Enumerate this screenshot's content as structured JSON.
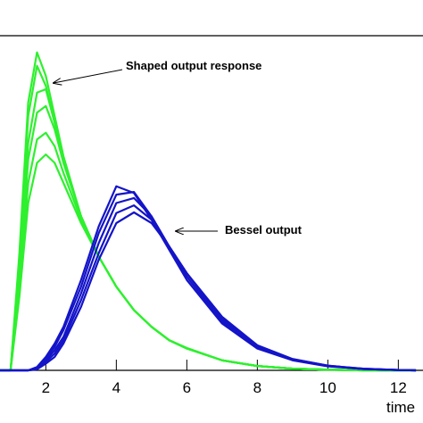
{
  "chart_data": {
    "type": "line",
    "x_label": "time",
    "annotations": [
      "Shaped output response",
      "Bessel output"
    ],
    "x": [
      0.5,
      1.0,
      1.25,
      1.5,
      1.75,
      2.0,
      2.25,
      2.5,
      3,
      3.5,
      4,
      4.5,
      5,
      5.5,
      6,
      7,
      8,
      9,
      10,
      11,
      12,
      12.5
    ],
    "series": [
      {
        "color": "#2ef02e",
        "values": [
          0,
          0,
          0.35,
          0.8,
          0.95,
          0.88,
          0.76,
          0.64,
          0.46,
          0.34,
          0.25,
          0.18,
          0.13,
          0.09,
          0.065,
          0.03,
          0.013,
          0.005,
          0.002,
          0,
          0,
          0
        ]
      },
      {
        "color": "#2ef02e",
        "values": [
          0,
          0,
          0.33,
          0.76,
          0.91,
          0.85,
          0.74,
          0.63,
          0.46,
          0.34,
          0.25,
          0.18,
          0.13,
          0.09,
          0.065,
          0.03,
          0.013,
          0.005,
          0.002,
          0,
          0,
          0
        ]
      },
      {
        "color": "#2ef02e",
        "values": [
          0,
          0,
          0.3,
          0.68,
          0.83,
          0.84,
          0.74,
          0.63,
          0.46,
          0.34,
          0.25,
          0.18,
          0.13,
          0.09,
          0.066,
          0.03,
          0.013,
          0.005,
          0.002,
          0,
          0,
          0
        ]
      },
      {
        "color": "#2ef02e",
        "values": [
          0,
          0,
          0.28,
          0.63,
          0.77,
          0.79,
          0.72,
          0.62,
          0.46,
          0.34,
          0.25,
          0.18,
          0.13,
          0.09,
          0.066,
          0.03,
          0.013,
          0.005,
          0.002,
          0,
          0,
          0
        ]
      },
      {
        "color": "#2ef02e",
        "values": [
          0,
          0,
          0.25,
          0.56,
          0.69,
          0.71,
          0.67,
          0.59,
          0.45,
          0.34,
          0.25,
          0.18,
          0.13,
          0.09,
          0.066,
          0.03,
          0.013,
          0.005,
          0.002,
          0,
          0,
          0
        ]
      },
      {
        "color": "#2ef02e",
        "values": [
          0,
          0,
          0.22,
          0.5,
          0.62,
          0.645,
          0.62,
          0.56,
          0.44,
          0.34,
          0.25,
          0.18,
          0.13,
          0.09,
          0.067,
          0.03,
          0.013,
          0.005,
          0.002,
          0,
          0,
          0
        ]
      },
      {
        "color": "#1414c8",
        "values": [
          0,
          0,
          0,
          0,
          0.01,
          0.04,
          0.08,
          0.13,
          0.27,
          0.43,
          0.55,
          0.53,
          0.45,
          0.36,
          0.27,
          0.14,
          0.065,
          0.03,
          0.012,
          0.004,
          0.001,
          0
        ]
      },
      {
        "color": "#1414c8",
        "values": [
          0,
          0,
          0,
          0,
          0.008,
          0.035,
          0.07,
          0.12,
          0.25,
          0.41,
          0.525,
          0.533,
          0.46,
          0.37,
          0.28,
          0.145,
          0.068,
          0.031,
          0.013,
          0.004,
          0.001,
          0
        ]
      },
      {
        "color": "#1414c8",
        "values": [
          0,
          0,
          0,
          0,
          0.006,
          0.03,
          0.06,
          0.1,
          0.23,
          0.38,
          0.5,
          0.515,
          0.46,
          0.37,
          0.29,
          0.15,
          0.07,
          0.032,
          0.013,
          0.004,
          0.001,
          0
        ]
      },
      {
        "color": "#1414c8",
        "values": [
          0,
          0,
          0,
          0,
          0.004,
          0.025,
          0.05,
          0.09,
          0.21,
          0.35,
          0.47,
          0.493,
          0.45,
          0.37,
          0.29,
          0.155,
          0.072,
          0.033,
          0.014,
          0.005,
          0.001,
          0
        ]
      },
      {
        "color": "#1414c8",
        "values": [
          0,
          0,
          0,
          0,
          0.003,
          0.02,
          0.04,
          0.08,
          0.19,
          0.33,
          0.44,
          0.472,
          0.44,
          0.37,
          0.29,
          0.16,
          0.075,
          0.034,
          0.014,
          0.005,
          0.001,
          0
        ]
      }
    ],
    "xlim": [
      0.7,
      12.7
    ],
    "ylim": [
      0,
      1
    ],
    "xticks": [
      2,
      4,
      6,
      8,
      10,
      12
    ],
    "grid": false
  }
}
